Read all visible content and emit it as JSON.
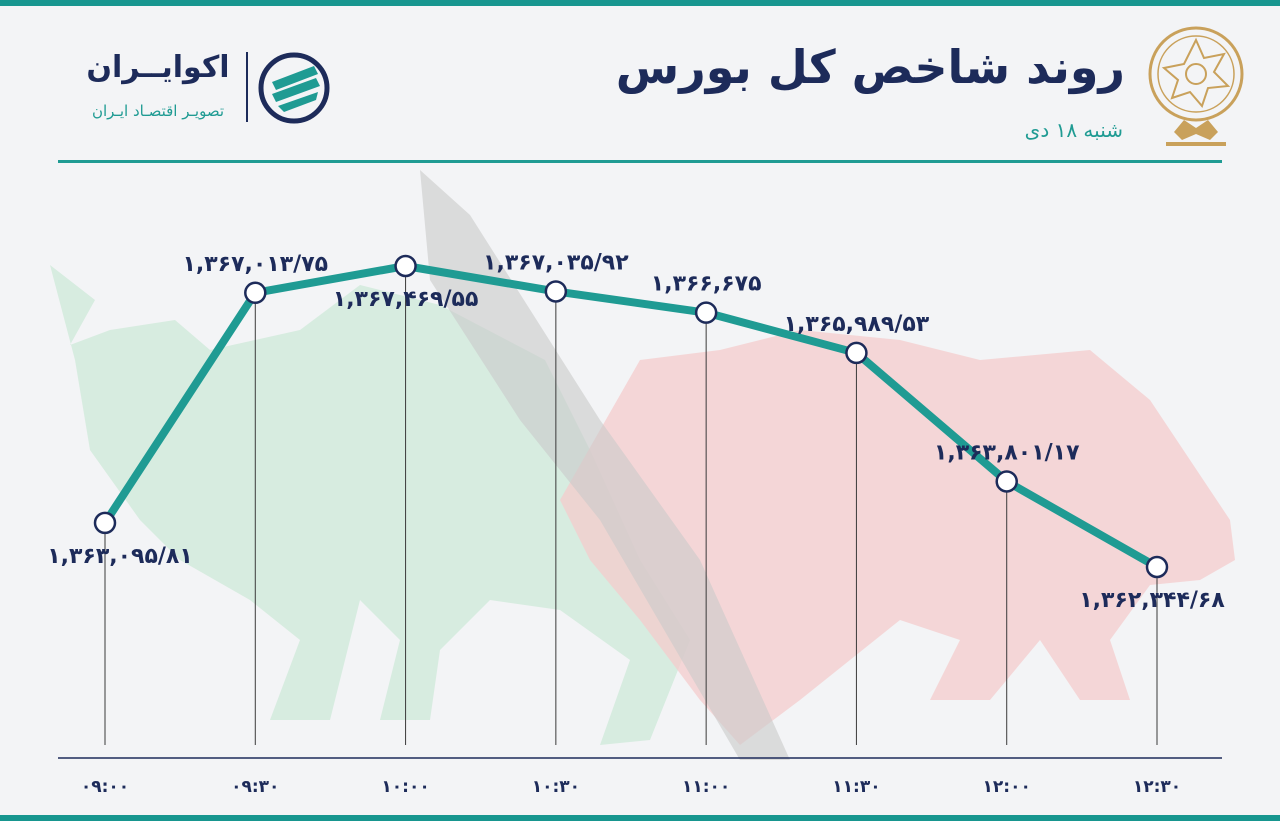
{
  "header": {
    "title": "روند شاخص کل بورس",
    "subtitle": "شنبه ۱۸ دی"
  },
  "brand": {
    "name": "اکوایــران",
    "tagline": "تصویـر اقتصـاد ایـران"
  },
  "colors": {
    "line": "#1f9b93",
    "navy": "#1d2b5a",
    "bull": "#bfe3cf",
    "bear": "#f2c6c6"
  },
  "chart_data": {
    "type": "line",
    "title": "روند شاخص کل بورس",
    "categories": [
      "۰۹:۰۰",
      "۰۹:۳۰",
      "۱۰:۰۰",
      "۱۰:۳۰",
      "۱۱:۰۰",
      "۱۱:۳۰",
      "۱۲:۰۰",
      "۱۲:۳۰"
    ],
    "values": [
      1363095.81,
      1367013.75,
      1367469.55,
      1367035.92,
      1366675,
      1365989.53,
      1363801.17,
      1362344.68
    ],
    "labels": [
      "۱,۳۶۳,۰۹۵/۸۱",
      "۱,۳۶۷,۰۱۳/۷۵",
      "۱,۳۶۷,۴۶۹/۵۵",
      "۱,۳۶۷,۰۳۵/۹۲",
      "۱,۳۶۶,۶۷۵",
      "۱,۳۶۵,۹۸۹/۵۳",
      "۱,۳۶۳,۸۰۱/۱۷",
      "۱,۳۶۲,۳۴۴/۶۸"
    ],
    "label_position": [
      "below",
      "above",
      "below",
      "above",
      "above",
      "above",
      "above",
      "below"
    ],
    "xlabel": "",
    "ylabel": "",
    "grid": "vertical drop lines"
  }
}
